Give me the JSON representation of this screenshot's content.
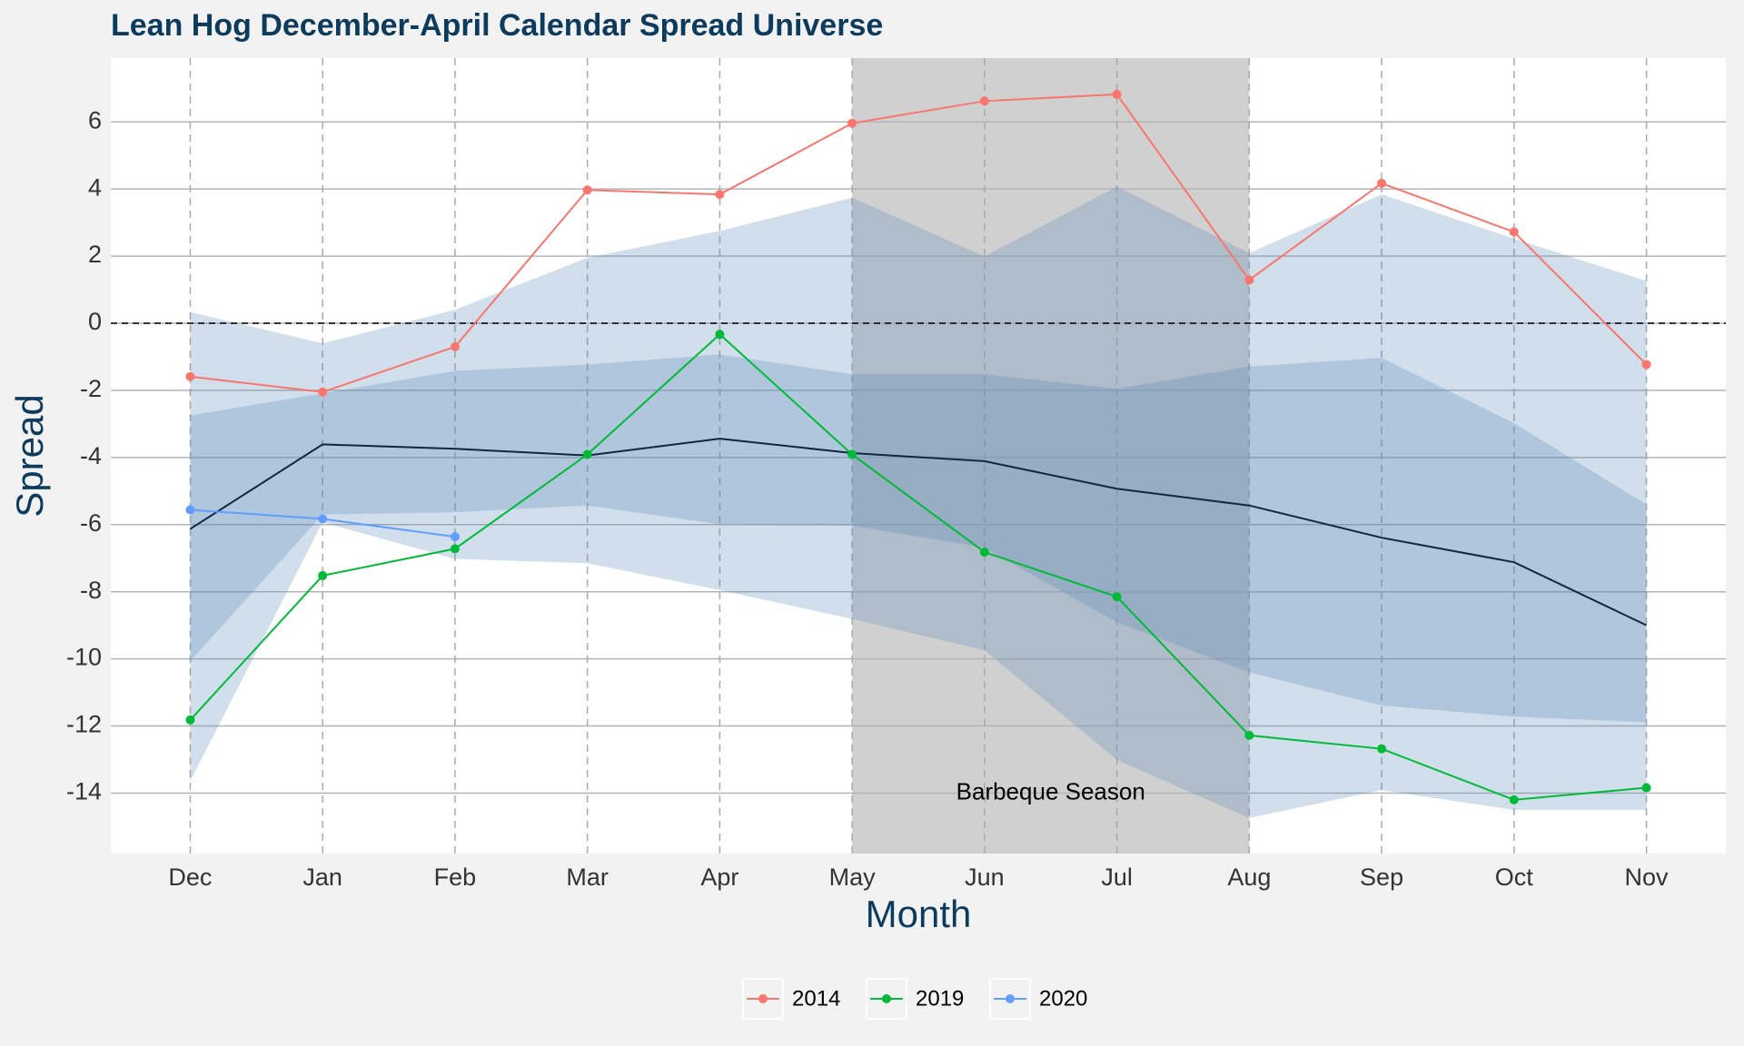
{
  "chart_data": {
    "type": "line",
    "title": "Lean Hog December-April Calendar Spread Universe",
    "x_label": "Month",
    "y_label": "Spread",
    "categories": [
      "Dec",
      "Jan",
      "Feb",
      "Mar",
      "Apr",
      "May",
      "Jun",
      "Jul",
      "Aug",
      "Sep",
      "Oct",
      "Nov"
    ],
    "series": [
      {
        "name": "2014",
        "color": "#f8766d",
        "values": [
          -1.59,
          -2.05,
          -0.7,
          3.97,
          3.84,
          5.96,
          6.62,
          6.82,
          1.29,
          4.17,
          2.72,
          -1.23
        ]
      },
      {
        "name": "2019",
        "color": "#00ba38",
        "values": [
          -11.82,
          -7.52,
          -6.72,
          -3.91,
          -0.33,
          -3.91,
          -6.82,
          -8.15,
          -12.28,
          -12.68,
          -14.2,
          -13.84
        ]
      },
      {
        "name": "2020",
        "color": "#619cff",
        "values": [
          -5.56,
          -5.83,
          -6.36,
          null,
          null,
          null,
          null,
          null,
          null,
          null,
          null,
          null
        ]
      }
    ],
    "median": {
      "color": "#0d2840",
      "values": [
        -6.13,
        -3.61,
        -3.74,
        -3.94,
        -3.44,
        -3.87,
        -4.11,
        -4.93,
        -5.43,
        -6.39,
        -7.12,
        -9.0
      ]
    },
    "bands": [
      {
        "color": "#5b8ab8",
        "upper": [
          0.33,
          -0.6,
          0.4,
          1.95,
          2.75,
          3.74,
          1.99,
          4.07,
          2.09,
          3.84,
          2.52,
          1.26
        ],
        "lower": [
          -13.64,
          -5.93,
          -7.02,
          -7.15,
          -7.95,
          -8.81,
          -9.74,
          -13.01,
          -14.74,
          -13.91,
          -14.5,
          -14.5
        ]
      },
      {
        "color": "#5b8ab8",
        "upper": [
          -2.75,
          -2.09,
          -1.42,
          -1.23,
          -0.93,
          -1.52,
          -1.52,
          -1.95,
          -1.29,
          -1.03,
          -2.98,
          -5.4
        ],
        "lower": [
          -10.07,
          -5.7,
          -5.63,
          -5.43,
          -5.99,
          -6.03,
          -6.69,
          -8.91,
          -10.4,
          -11.39,
          -11.72,
          -11.89
        ]
      }
    ],
    "shade": {
      "from": "May",
      "to": "Aug",
      "color": "#d0d0d0",
      "label": "Barbeque Season",
      "label_y": -14
    },
    "hline": 0,
    "ylim": [
      -15.8,
      7.9
    ],
    "yticks": [
      -14,
      -12,
      -10,
      -8,
      -6,
      -4,
      -2,
      0,
      2,
      4,
      6
    ],
    "grid": true,
    "legend": "bottom"
  }
}
